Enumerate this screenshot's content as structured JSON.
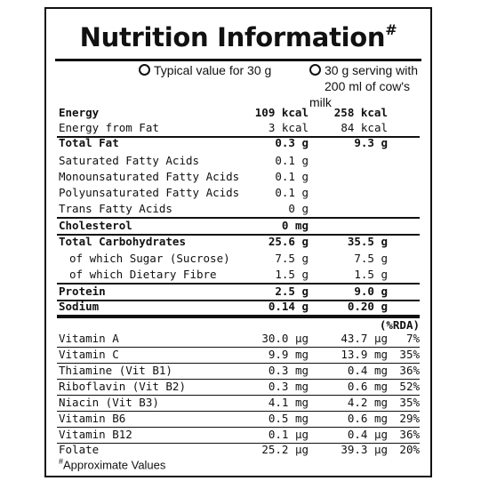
{
  "title": "Nutrition Information",
  "title_mark": "#",
  "columns": {
    "typical": "Typical value for 30 g",
    "serving_line1": "30 g serving with",
    "serving_line2": "200 ml of cow's milk",
    "rda": "(%RDA)"
  },
  "nutrients": [
    {
      "label": "Energy",
      "v1": "109 kcal",
      "v2": "258 kcal",
      "bold": true
    },
    {
      "label": "Energy from Fat",
      "v1": "3 kcal",
      "v2": "84 kcal"
    },
    {
      "label": "Total Fat",
      "v1": "0.3 g",
      "v2": "9.3 g",
      "bold": true
    },
    {
      "label": "Saturated Fatty Acids",
      "v1": "0.1 g",
      "v2": ""
    },
    {
      "label": "Monounsaturated Fatty Acids",
      "v1": "0.1 g",
      "v2": ""
    },
    {
      "label": "Polyunsaturated Fatty Acids",
      "v1": "0.1 g",
      "v2": ""
    },
    {
      "label": "Trans Fatty Acids",
      "v1": "0 g",
      "v2": ""
    },
    {
      "label": "Cholesterol",
      "v1": "0 mg",
      "v2": "",
      "bold": true
    },
    {
      "label": "Total Carbohydrates",
      "v1": "25.6 g",
      "v2": "35.5 g",
      "bold": true
    },
    {
      "label": "of which Sugar (Sucrose)",
      "v1": "7.5 g",
      "v2": "7.5 g"
    },
    {
      "label": "of which Dietary Fibre",
      "v1": "1.5 g",
      "v2": "1.5 g"
    },
    {
      "label": "Protein",
      "v1": "2.5 g",
      "v2": "9.0 g",
      "bold": true
    },
    {
      "label": "Sodium",
      "v1": "0.14 g",
      "v2": "0.20 g",
      "bold": true
    }
  ],
  "vitamins": [
    {
      "label": "Vitamin A",
      "v1": "30.0 μg",
      "v2": "43.7 μg",
      "rda": "7%"
    },
    {
      "label": "Vitamin C",
      "v1": "9.9 mg",
      "v2": "13.9 mg",
      "rda": "35%"
    },
    {
      "label": "Thiamine (Vit B1)",
      "v1": "0.3 mg",
      "v2": "0.4 mg",
      "rda": "36%"
    },
    {
      "label": "Riboflavin (Vit B2)",
      "v1": "0.3 mg",
      "v2": "0.6 mg",
      "rda": "52%"
    },
    {
      "label": "Niacin (Vit B3)",
      "v1": "4.1 mg",
      "v2": "4.2 mg",
      "rda": "35%"
    },
    {
      "label": "Vitamin B6",
      "v1": "0.5 mg",
      "v2": "0.6 mg",
      "rda": "29%"
    },
    {
      "label": "Vitamin B12",
      "v1": "0.1 μg",
      "v2": "0.4 μg",
      "rda": "36%"
    },
    {
      "label": "Folate",
      "v1": "25.2 μg",
      "v2": "39.3 μg",
      "rda": "20%"
    }
  ],
  "footnote_mark": "#",
  "footnote": "Approximate Values"
}
